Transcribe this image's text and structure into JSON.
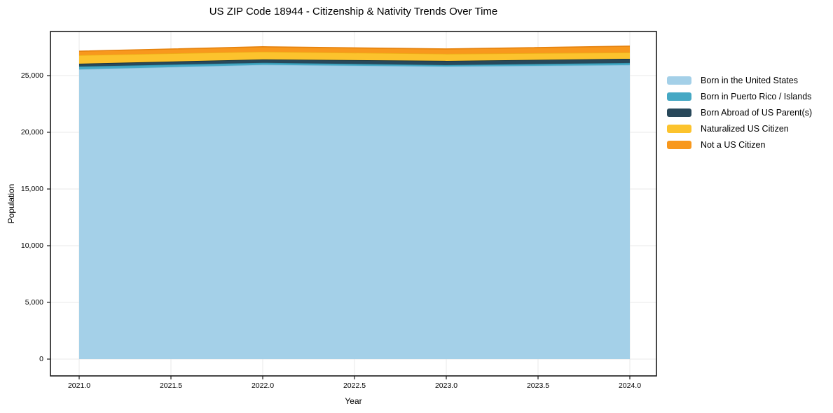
{
  "chart_data": {
    "type": "area",
    "stacked": true,
    "title": "US ZIP Code 18944 - Citizenship & Nativity Trends Over Time",
    "xlabel": "Year",
    "ylabel": "Population",
    "x": [
      2021,
      2022,
      2023,
      2024
    ],
    "xlim": [
      2020.84,
      2024.15
    ],
    "ylim": [
      -1480,
      28890
    ],
    "x_tick_values": [
      2021.0,
      2021.5,
      2022.0,
      2022.5,
      2023.0,
      2023.5,
      2024.0
    ],
    "x_tick_labels": [
      "2021.0",
      "2021.5",
      "2022.0",
      "2022.5",
      "2023.0",
      "2023.5",
      "2024.0"
    ],
    "y_tick_values": [
      0,
      5000,
      10000,
      15000,
      20000,
      25000
    ],
    "y_tick_labels": [
      "0",
      "5,000",
      "10,000",
      "15,000",
      "20,000",
      "25,000"
    ],
    "grid": true,
    "legend_position": "right",
    "series": [
      {
        "name": "Born in the United States",
        "color": "#a4d0e8",
        "line_color": "#8ec2dd",
        "values": [
          25550,
          25950,
          25800,
          25930
        ]
      },
      {
        "name": "Born in Puerto Rico / Islands",
        "color": "#45a8c4",
        "line_color": "#2e93ae",
        "values": [
          250,
          180,
          130,
          185
        ]
      },
      {
        "name": "Born Abroad of US Parent(s)",
        "color": "#28485a",
        "line_color": "#16313f",
        "values": [
          250,
          300,
          370,
          370
        ]
      },
      {
        "name": "Naturalized US Citizen",
        "color": "#fcc32d",
        "line_color": "#edaf15",
        "values": [
          750,
          680,
          620,
          555
        ]
      },
      {
        "name": "Not a US Citizen",
        "color": "#f8981d",
        "line_color": "#e5820e",
        "values": [
          350,
          430,
          430,
          555
        ]
      }
    ]
  },
  "colors": {
    "background": "#ffffff",
    "grid": "#e9e9e9",
    "axis": "#1a1a1a",
    "text": "#000000"
  }
}
